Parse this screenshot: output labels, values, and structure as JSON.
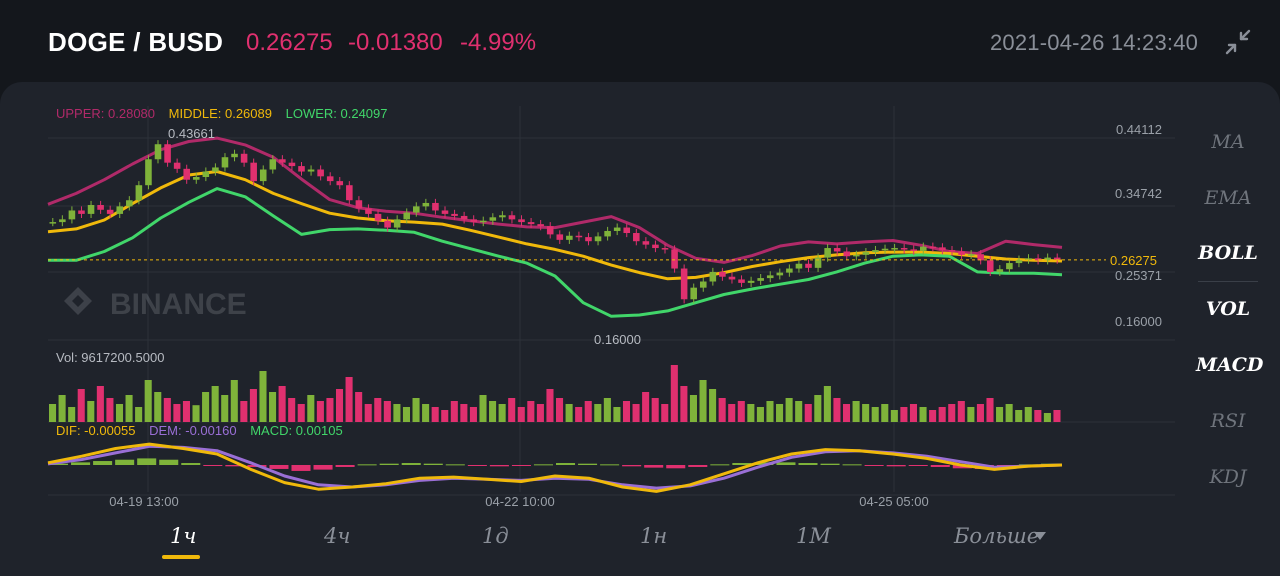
{
  "header": {
    "pair": "DOGE / BUSD",
    "price": "0.26275",
    "change": "-0.01380",
    "change_pct": "-4.99%",
    "datetime": "2021-04-26 14:23:40",
    "collapse_icon": "collapse-arrows-icon",
    "down_color": "#e0306f"
  },
  "boll_legend": {
    "upper": "UPPER: 0.28080",
    "middle": "MIDDLE: 0.26089",
    "lower": "LOWER: 0.24097"
  },
  "vol_legend": "Vol: 9617200.5000",
  "macd_legend": {
    "dif": "DIF: -0.00055",
    "dem": "DEM: -0.00160",
    "macd": "MACD: 0.00105"
  },
  "watermark": "BINANCE",
  "colors": {
    "up": "#7fb33a",
    "down": "#e0306f",
    "upper": "#b02a69",
    "middle": "#f0b90b",
    "lower": "#41d66a",
    "dem": "#9a6fd6"
  },
  "indicators": [
    {
      "label": "MA",
      "active": false
    },
    {
      "label": "EMA",
      "active": false
    },
    {
      "label": "BOLL",
      "active": true
    },
    {
      "label": "VOL",
      "active": true
    },
    {
      "label": "MACD",
      "active": true
    },
    {
      "label": "RSI",
      "active": false
    },
    {
      "label": "KDJ",
      "active": false
    }
  ],
  "timeframes": {
    "selected": "1ч",
    "items": [
      "1ч",
      "4ч",
      "1д",
      "1н",
      "1М",
      "Больше"
    ]
  },
  "chart_data": {
    "type": "candlestick",
    "price_axis_labels": [
      "0.44112",
      "0.34742",
      "0.25371",
      "0.16000"
    ],
    "last_price_label": "0.26275",
    "high_label": "0.43661",
    "low_label": "0.16000",
    "x_tick_labels": [
      "04-19 13:00",
      "04-22 10:00",
      "04-25 05:00"
    ],
    "boll": {
      "upper": [
        0.344,
        0.36,
        0.38,
        0.403,
        0.424,
        0.436,
        0.441,
        0.431,
        0.413,
        0.381,
        0.351,
        0.339,
        0.334,
        0.331,
        0.325,
        0.32,
        0.315,
        0.311,
        0.31,
        0.318,
        0.326,
        0.31,
        0.284,
        0.265,
        0.259,
        0.269,
        0.283,
        0.289,
        0.286,
        0.289,
        0.291,
        0.284,
        0.275,
        0.272,
        0.29,
        0.285,
        0.281
      ],
      "middle": [
        0.304,
        0.308,
        0.321,
        0.345,
        0.368,
        0.387,
        0.392,
        0.38,
        0.36,
        0.345,
        0.331,
        0.324,
        0.32,
        0.318,
        0.315,
        0.306,
        0.296,
        0.286,
        0.278,
        0.268,
        0.255,
        0.244,
        0.235,
        0.237,
        0.244,
        0.253,
        0.26,
        0.266,
        0.27,
        0.273,
        0.274,
        0.274,
        0.272,
        0.268,
        0.264,
        0.262,
        0.261
      ],
      "lower": [
        0.262,
        0.262,
        0.275,
        0.295,
        0.324,
        0.347,
        0.367,
        0.355,
        0.327,
        0.3,
        0.307,
        0.308,
        0.306,
        0.303,
        0.29,
        0.279,
        0.268,
        0.258,
        0.239,
        0.2,
        0.18,
        0.182,
        0.188,
        0.2,
        0.212,
        0.22,
        0.227,
        0.234,
        0.245,
        0.258,
        0.268,
        0.27,
        0.268,
        0.245,
        0.243,
        0.243,
        0.241
      ]
    },
    "candles": [
      0.318,
      0.322,
      0.335,
      0.33,
      0.343,
      0.336,
      0.33,
      0.341,
      0.35,
      0.372,
      0.41,
      0.432,
      0.405,
      0.396,
      0.38,
      0.384,
      0.392,
      0.398,
      0.413,
      0.418,
      0.405,
      0.378,
      0.395,
      0.41,
      0.405,
      0.4,
      0.392,
      0.395,
      0.385,
      0.378,
      0.372,
      0.35,
      0.338,
      0.33,
      0.32,
      0.31,
      0.322,
      0.332,
      0.341,
      0.346,
      0.335,
      0.33,
      0.327,
      0.322,
      0.318,
      0.32,
      0.325,
      0.328,
      0.322,
      0.318,
      0.315,
      0.312,
      0.3,
      0.292,
      0.298,
      0.296,
      0.29,
      0.297,
      0.305,
      0.31,
      0.302,
      0.29,
      0.285,
      0.28,
      0.278,
      0.25,
      0.205,
      0.222,
      0.231,
      0.245,
      0.238,
      0.234,
      0.229,
      0.232,
      0.236,
      0.24,
      0.244,
      0.25,
      0.257,
      0.251,
      0.266,
      0.28,
      0.275,
      0.268,
      0.27,
      0.274,
      0.277,
      0.279,
      0.28,
      0.278,
      0.276,
      0.282,
      0.281,
      0.277,
      0.275,
      0.27,
      0.271,
      0.262,
      0.245,
      0.249,
      0.258,
      0.263,
      0.265,
      0.262,
      0.266,
      0.263
    ],
    "volume": [
      0.3,
      0.45,
      0.25,
      0.55,
      0.35,
      0.6,
      0.4,
      0.3,
      0.45,
      0.25,
      0.7,
      0.5,
      0.4,
      0.3,
      0.35,
      0.28,
      0.5,
      0.6,
      0.45,
      0.7,
      0.35,
      0.55,
      0.85,
      0.5,
      0.6,
      0.4,
      0.3,
      0.45,
      0.35,
      0.4,
      0.55,
      0.75,
      0.5,
      0.3,
      0.4,
      0.35,
      0.3,
      0.25,
      0.4,
      0.3,
      0.25,
      0.2,
      0.35,
      0.3,
      0.25,
      0.45,
      0.35,
      0.3,
      0.4,
      0.25,
      0.35,
      0.3,
      0.55,
      0.4,
      0.3,
      0.25,
      0.35,
      0.3,
      0.4,
      0.25,
      0.35,
      0.3,
      0.5,
      0.4,
      0.3,
      0.95,
      0.6,
      0.45,
      0.7,
      0.55,
      0.4,
      0.3,
      0.35,
      0.3,
      0.25,
      0.35,
      0.3,
      0.4,
      0.35,
      0.3,
      0.45,
      0.6,
      0.4,
      0.3,
      0.35,
      0.3,
      0.25,
      0.3,
      0.2,
      0.25,
      0.3,
      0.25,
      0.2,
      0.25,
      0.3,
      0.35,
      0.25,
      0.3,
      0.4,
      0.25,
      0.3,
      0.2,
      0.25,
      0.2,
      0.15,
      0.2
    ],
    "macd_hist": [
      0.2,
      0.4,
      0.6,
      0.8,
      1.0,
      0.8,
      0.3,
      -0.1,
      -0.2,
      -0.3,
      -0.6,
      -0.9,
      -0.7,
      -0.3,
      0.1,
      0.2,
      0.3,
      0.2,
      0.1,
      -0.1,
      -0.2,
      -0.1,
      0.1,
      0.3,
      0.2,
      0.1,
      -0.2,
      -0.4,
      -0.5,
      -0.3,
      0.1,
      0.3,
      0.4,
      0.4,
      0.3,
      0.2,
      0.1,
      -0.1,
      -0.2,
      -0.1,
      -0.3,
      -0.5,
      -0.6,
      -0.3,
      0.1,
      0.2
    ],
    "dif": [
      0.2,
      0.8,
      1.5,
      1.9,
      1.5,
      1.0,
      -0.4,
      -1.6,
      -2.2,
      -2.0,
      -1.7,
      -1.2,
      -1.1,
      -1.3,
      -1.5,
      -1.0,
      -1.2,
      -2.0,
      -2.4,
      -1.8,
      -0.8,
      0.2,
      1.0,
      1.4,
      1.3,
      1.0,
      0.6,
      0.0,
      -0.4,
      -0.1,
      0.0
    ],
    "dem": [
      0.1,
      0.5,
      1.1,
      1.7,
      1.6,
      1.3,
      0.2,
      -1.0,
      -1.8,
      -2.0,
      -1.8,
      -1.4,
      -1.2,
      -1.3,
      -1.4,
      -1.2,
      -1.3,
      -1.8,
      -2.1,
      -1.9,
      -1.2,
      -0.2,
      0.7,
      1.2,
      1.3,
      1.1,
      0.8,
      0.3,
      -0.2,
      -0.1,
      0.0
    ]
  }
}
